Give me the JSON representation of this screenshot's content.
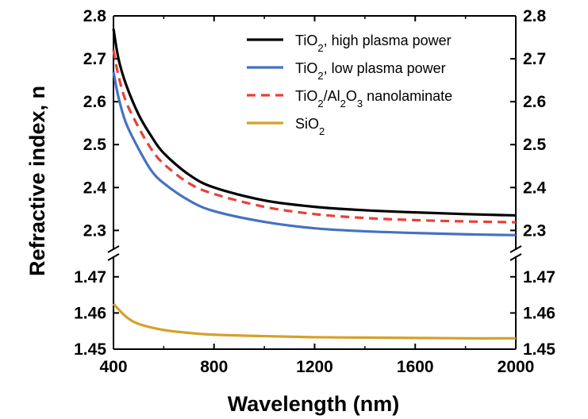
{
  "chart_data": {
    "type": "line",
    "xlabel": "Wavelength (nm)",
    "ylabel": "Refractive index, n",
    "xlim": [
      400,
      2000
    ],
    "x_ticks": [
      "400",
      "800",
      "1200",
      "1600",
      "2000"
    ],
    "broken_y_axis": true,
    "y_upper": {
      "range": [
        2.26,
        2.8
      ],
      "ticks": [
        "2.3",
        "2.4",
        "2.5",
        "2.6",
        "2.7",
        "2.8"
      ]
    },
    "y_lower": {
      "range": [
        1.45,
        1.475
      ],
      "ticks": [
        "1.45",
        "1.46",
        "1.47"
      ]
    },
    "legend_position": "top-right",
    "grid": false,
    "series": [
      {
        "name": "TiO2, high plasma power",
        "legend_parts": [
          [
            "TiO",
            ""
          ],
          [
            "2",
            "sub"
          ],
          [
            ", high plasma power",
            ""
          ]
        ],
        "color": "#000000",
        "style": "solid",
        "panel": "upper",
        "x": [
          400,
          420,
          450,
          500,
          550,
          600,
          700,
          800,
          1000,
          1200,
          1400,
          1600,
          1800,
          2000
        ],
        "y": [
          2.77,
          2.7,
          2.64,
          2.57,
          2.52,
          2.48,
          2.43,
          2.4,
          2.37,
          2.355,
          2.347,
          2.342,
          2.338,
          2.335
        ]
      },
      {
        "name": "TiO2, low plasma power",
        "legend_parts": [
          [
            "TiO",
            ""
          ],
          [
            "2",
            "sub"
          ],
          [
            ", low plasma power",
            ""
          ]
        ],
        "color": "#4472c4",
        "style": "solid",
        "panel": "upper",
        "x": [
          400,
          420,
          450,
          500,
          550,
          600,
          700,
          800,
          1000,
          1200,
          1400,
          1600,
          1800,
          2000
        ],
        "y": [
          2.67,
          2.61,
          2.55,
          2.49,
          2.44,
          2.41,
          2.37,
          2.345,
          2.32,
          2.305,
          2.298,
          2.294,
          2.291,
          2.289
        ]
      },
      {
        "name": "TiO2/Al2O3 nanolaminate",
        "legend_parts": [
          [
            "TiO",
            ""
          ],
          [
            "2",
            "sub"
          ],
          [
            "/Al",
            ""
          ],
          [
            "2",
            "sub"
          ],
          [
            "O",
            ""
          ],
          [
            "3",
            "sub"
          ],
          [
            " nanolaminate",
            ""
          ]
        ],
        "color": "#e8413a",
        "style": "dashed",
        "panel": "upper",
        "x": [
          400,
          420,
          450,
          500,
          550,
          600,
          700,
          800,
          1000,
          1200,
          1400,
          1600,
          1800,
          2000
        ],
        "y": [
          2.72,
          2.66,
          2.6,
          2.54,
          2.49,
          2.455,
          2.41,
          2.385,
          2.355,
          2.338,
          2.329,
          2.324,
          2.321,
          2.319
        ]
      },
      {
        "name": "SiO2",
        "legend_parts": [
          [
            "SiO",
            ""
          ],
          [
            "2",
            "sub"
          ]
        ],
        "color": "#d4a12a",
        "style": "solid",
        "panel": "lower",
        "x": [
          400,
          450,
          500,
          600,
          700,
          800,
          1000,
          1200,
          1400,
          1600,
          1800,
          2000
        ],
        "y": [
          1.4625,
          1.459,
          1.457,
          1.4553,
          1.4545,
          1.454,
          1.4536,
          1.4533,
          1.4532,
          1.4531,
          1.453,
          1.453
        ]
      }
    ]
  }
}
